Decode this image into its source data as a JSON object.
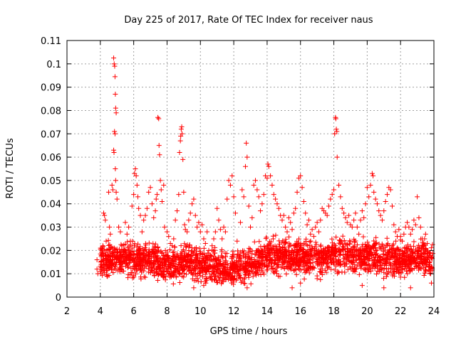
{
  "chart_data": {
    "type": "scatter",
    "title": "Day 225 of 2017, Rate Of TEC Index for receiver naus",
    "xlabel": "GPS time / hours",
    "ylabel": "ROTI / TECUs",
    "xlim": [
      2,
      24
    ],
    "ylim": [
      0,
      0.11
    ],
    "x_ticks": [
      2,
      4,
      6,
      8,
      10,
      12,
      14,
      16,
      18,
      20,
      22,
      24
    ],
    "y_ticks": [
      0,
      0.01,
      0.02,
      0.03,
      0.04,
      0.05,
      0.06,
      0.07,
      0.08,
      0.09,
      0.1,
      0.11
    ],
    "grid": true,
    "marker": "plus",
    "color": "#ff0000",
    "series": [
      {
        "values": [
          [
            3.8,
            0.016
          ],
          [
            3.8,
            0.012
          ],
          [
            3.85,
            0.01
          ],
          [
            4.0,
            0.011
          ],
          [
            4.05,
            0.014
          ],
          [
            4.1,
            0.018
          ],
          [
            4.15,
            0.022
          ],
          [
            4.2,
            0.036
          ],
          [
            4.25,
            0.035
          ],
          [
            4.3,
            0.033
          ],
          [
            4.35,
            0.024
          ],
          [
            4.4,
            0.009
          ],
          [
            4.5,
            0.045
          ],
          [
            4.55,
            0.03
          ],
          [
            4.6,
            0.027
          ],
          [
            4.7,
            0.048
          ],
          [
            4.75,
            0.046
          ],
          [
            4.8,
            0.063
          ],
          [
            4.82,
            0.062
          ],
          [
            4.85,
            0.071
          ],
          [
            4.88,
            0.07
          ],
          [
            4.9,
            0.087
          ],
          [
            4.92,
            0.081
          ],
          [
            4.95,
            0.079
          ],
          [
            4.8,
            0.1025
          ],
          [
            4.83,
            0.1
          ],
          [
            4.86,
            0.099
          ],
          [
            4.88,
            0.0945
          ],
          [
            4.9,
            0.055
          ],
          [
            4.92,
            0.05
          ],
          [
            4.95,
            0.045
          ],
          [
            5.0,
            0.042
          ],
          [
            5.1,
            0.03
          ],
          [
            5.2,
            0.028
          ],
          [
            5.3,
            0.022
          ],
          [
            5.4,
            0.019
          ],
          [
            5.5,
            0.032
          ],
          [
            5.6,
            0.027
          ],
          [
            5.7,
            0.03
          ],
          [
            5.8,
            0.024
          ],
          [
            5.9,
            0.039
          ],
          [
            6.0,
            0.044
          ],
          [
            6.05,
            0.053
          ],
          [
            6.1,
            0.055
          ],
          [
            6.15,
            0.052
          ],
          [
            6.2,
            0.048
          ],
          [
            6.25,
            0.043
          ],
          [
            6.3,
            0.038
          ],
          [
            6.4,
            0.035
          ],
          [
            6.5,
            0.028
          ],
          [
            6.6,
            0.033
          ],
          [
            6.7,
            0.035
          ],
          [
            6.8,
            0.038
          ],
          [
            6.9,
            0.045
          ],
          [
            7.0,
            0.047
          ],
          [
            7.1,
            0.04
          ],
          [
            7.2,
            0.034
          ],
          [
            7.3,
            0.037
          ],
          [
            7.35,
            0.042
          ],
          [
            7.4,
            0.044
          ],
          [
            7.45,
            0.077
          ],
          [
            7.5,
            0.0765
          ],
          [
            7.52,
            0.065
          ],
          [
            7.55,
            0.061
          ],
          [
            7.6,
            0.05
          ],
          [
            7.65,
            0.046
          ],
          [
            7.7,
            0.041
          ],
          [
            7.8,
            0.048
          ],
          [
            7.85,
            0.03
          ],
          [
            7.9,
            0.02
          ],
          [
            8.0,
            0.028
          ],
          [
            8.1,
            0.026
          ],
          [
            8.2,
            0.023
          ],
          [
            8.3,
            0.022
          ],
          [
            8.4,
            0.025
          ],
          [
            8.5,
            0.033
          ],
          [
            8.6,
            0.037
          ],
          [
            8.7,
            0.044
          ],
          [
            8.75,
            0.062
          ],
          [
            8.8,
            0.067
          ],
          [
            8.82,
            0.069
          ],
          [
            8.85,
            0.072
          ],
          [
            8.88,
            0.073
          ],
          [
            8.9,
            0.07
          ],
          [
            8.95,
            0.059
          ],
          [
            9.0,
            0.045
          ],
          [
            9.05,
            0.031
          ],
          [
            9.1,
            0.029
          ],
          [
            9.2,
            0.028
          ],
          [
            9.3,
            0.033
          ],
          [
            9.4,
            0.036
          ],
          [
            9.5,
            0.04
          ],
          [
            9.6,
            0.042
          ],
          [
            9.7,
            0.035
          ],
          [
            9.8,
            0.03
          ],
          [
            9.9,
            0.032
          ],
          [
            10.0,
            0.028
          ],
          [
            10.1,
            0.031
          ],
          [
            10.2,
            0.025
          ],
          [
            10.3,
            0.023
          ],
          [
            10.4,
            0.028
          ],
          [
            10.5,
            0.02
          ],
          [
            10.6,
            0.018
          ],
          [
            10.7,
            0.022
          ],
          [
            10.8,
            0.025
          ],
          [
            10.9,
            0.028
          ],
          [
            11.0,
            0.038
          ],
          [
            11.1,
            0.033
          ],
          [
            11.2,
            0.029
          ],
          [
            11.3,
            0.025
          ],
          [
            11.4,
            0.03
          ],
          [
            11.5,
            0.028
          ],
          [
            11.6,
            0.042
          ],
          [
            11.7,
            0.05
          ],
          [
            11.8,
            0.048
          ],
          [
            11.9,
            0.052
          ],
          [
            12.0,
            0.043
          ],
          [
            12.1,
            0.036
          ],
          [
            12.2,
            0.024
          ],
          [
            12.3,
            0.018
          ],
          [
            12.4,
            0.032
          ],
          [
            12.5,
            0.046
          ],
          [
            12.6,
            0.043
          ],
          [
            12.7,
            0.056
          ],
          [
            12.75,
            0.066
          ],
          [
            12.8,
            0.06
          ],
          [
            12.9,
            0.039
          ],
          [
            13.0,
            0.03
          ],
          [
            13.1,
            0.034
          ],
          [
            13.2,
            0.048
          ],
          [
            13.3,
            0.05
          ],
          [
            13.4,
            0.046
          ],
          [
            13.5,
            0.043
          ],
          [
            13.6,
            0.037
          ],
          [
            13.7,
            0.04
          ],
          [
            13.8,
            0.044
          ],
          [
            13.9,
            0.052
          ],
          [
            14.0,
            0.051
          ],
          [
            14.05,
            0.057
          ],
          [
            14.1,
            0.056
          ],
          [
            14.2,
            0.052
          ],
          [
            14.3,
            0.048
          ],
          [
            14.4,
            0.044
          ],
          [
            14.5,
            0.042
          ],
          [
            14.6,
            0.04
          ],
          [
            14.7,
            0.038
          ],
          [
            14.8,
            0.035
          ],
          [
            14.9,
            0.033
          ],
          [
            15.0,
            0.035
          ],
          [
            15.1,
            0.03
          ],
          [
            15.2,
            0.028
          ],
          [
            15.3,
            0.034
          ],
          [
            15.4,
            0.032
          ],
          [
            15.5,
            0.029
          ],
          [
            15.6,
            0.036
          ],
          [
            15.7,
            0.038
          ],
          [
            15.8,
            0.045
          ],
          [
            15.9,
            0.051
          ],
          [
            16.0,
            0.052
          ],
          [
            16.1,
            0.047
          ],
          [
            16.2,
            0.041
          ],
          [
            16.3,
            0.036
          ],
          [
            16.4,
            0.031
          ],
          [
            16.5,
            0.033
          ],
          [
            16.6,
            0.027
          ],
          [
            16.7,
            0.029
          ],
          [
            16.8,
            0.026
          ],
          [
            16.9,
            0.03
          ],
          [
            17.0,
            0.032
          ],
          [
            17.1,
            0.028
          ],
          [
            17.2,
            0.033
          ],
          [
            17.3,
            0.038
          ],
          [
            17.4,
            0.037
          ],
          [
            17.5,
            0.036
          ],
          [
            17.6,
            0.035
          ],
          [
            17.7,
            0.039
          ],
          [
            17.8,
            0.042
          ],
          [
            17.9,
            0.044
          ],
          [
            18.0,
            0.046
          ],
          [
            18.05,
            0.07
          ],
          [
            18.1,
            0.077
          ],
          [
            18.12,
            0.0765
          ],
          [
            18.15,
            0.072
          ],
          [
            18.18,
            0.071
          ],
          [
            18.2,
            0.06
          ],
          [
            18.3,
            0.048
          ],
          [
            18.4,
            0.043
          ],
          [
            18.5,
            0.038
          ],
          [
            18.6,
            0.036
          ],
          [
            18.7,
            0.034
          ],
          [
            18.8,
            0.032
          ],
          [
            18.9,
            0.035
          ],
          [
            19.0,
            0.031
          ],
          [
            19.1,
            0.03
          ],
          [
            19.2,
            0.033
          ],
          [
            19.3,
            0.036
          ],
          [
            19.4,
            0.03
          ],
          [
            19.5,
            0.027
          ],
          [
            19.6,
            0.033
          ],
          [
            19.7,
            0.037
          ],
          [
            19.8,
            0.034
          ],
          [
            19.9,
            0.04
          ],
          [
            20.0,
            0.047
          ],
          [
            20.1,
            0.043
          ],
          [
            20.2,
            0.048
          ],
          [
            20.3,
            0.053
          ],
          [
            20.35,
            0.052
          ],
          [
            20.4,
            0.045
          ],
          [
            20.5,
            0.042
          ],
          [
            20.6,
            0.04
          ],
          [
            20.7,
            0.037
          ],
          [
            20.8,
            0.035
          ],
          [
            20.9,
            0.033
          ],
          [
            21.0,
            0.037
          ],
          [
            21.1,
            0.041
          ],
          [
            21.2,
            0.044
          ],
          [
            21.3,
            0.047
          ],
          [
            21.4,
            0.046
          ],
          [
            21.5,
            0.039
          ],
          [
            21.6,
            0.031
          ],
          [
            21.7,
            0.028
          ],
          [
            21.8,
            0.026
          ],
          [
            21.9,
            0.029
          ],
          [
            22.0,
            0.026
          ],
          [
            22.1,
            0.024
          ],
          [
            22.2,
            0.027
          ],
          [
            22.3,
            0.03
          ],
          [
            22.4,
            0.032
          ],
          [
            22.5,
            0.03
          ],
          [
            22.6,
            0.027
          ],
          [
            22.7,
            0.029
          ],
          [
            22.8,
            0.033
          ],
          [
            22.9,
            0.031
          ],
          [
            23.0,
            0.043
          ],
          [
            23.1,
            0.034
          ],
          [
            23.2,
            0.03
          ],
          [
            23.3,
            0.025
          ],
          [
            23.4,
            0.022
          ],
          [
            23.5,
            0.027
          ],
          [
            23.6,
            0.023
          ],
          [
            23.7,
            0.019
          ],
          [
            23.75,
            0.014
          ],
          [
            23.8,
            0.01
          ],
          [
            23.85,
            0.006
          ],
          [
            23.9,
            0.012
          ],
          [
            15.5,
            0.004
          ],
          [
            16.0,
            0.006
          ],
          [
            19.7,
            0.005
          ],
          [
            21.0,
            0.004
          ],
          [
            22.6,
            0.004
          ],
          [
            10.2,
            0.005
          ],
          [
            12.8,
            0.004
          ],
          [
            9.6,
            0.004
          ]
        ]
      }
    ],
    "band": {
      "x_start": 4.0,
      "x_end": 23.95,
      "median_trend": [
        [
          4,
          0.016
        ],
        [
          5,
          0.016
        ],
        [
          6,
          0.016
        ],
        [
          7,
          0.016
        ],
        [
          8,
          0.013
        ],
        [
          9,
          0.015
        ],
        [
          10,
          0.014
        ],
        [
          11,
          0.012
        ],
        [
          12,
          0.012
        ],
        [
          13,
          0.014
        ],
        [
          14,
          0.017
        ],
        [
          15,
          0.018
        ],
        [
          16,
          0.017
        ],
        [
          17,
          0.016
        ],
        [
          18,
          0.018
        ],
        [
          19,
          0.018
        ],
        [
          20,
          0.018
        ],
        [
          21,
          0.017
        ],
        [
          22,
          0.016
        ],
        [
          23,
          0.017
        ],
        [
          24,
          0.016
        ]
      ],
      "spread": 0.009,
      "point_count": 2600
    }
  }
}
